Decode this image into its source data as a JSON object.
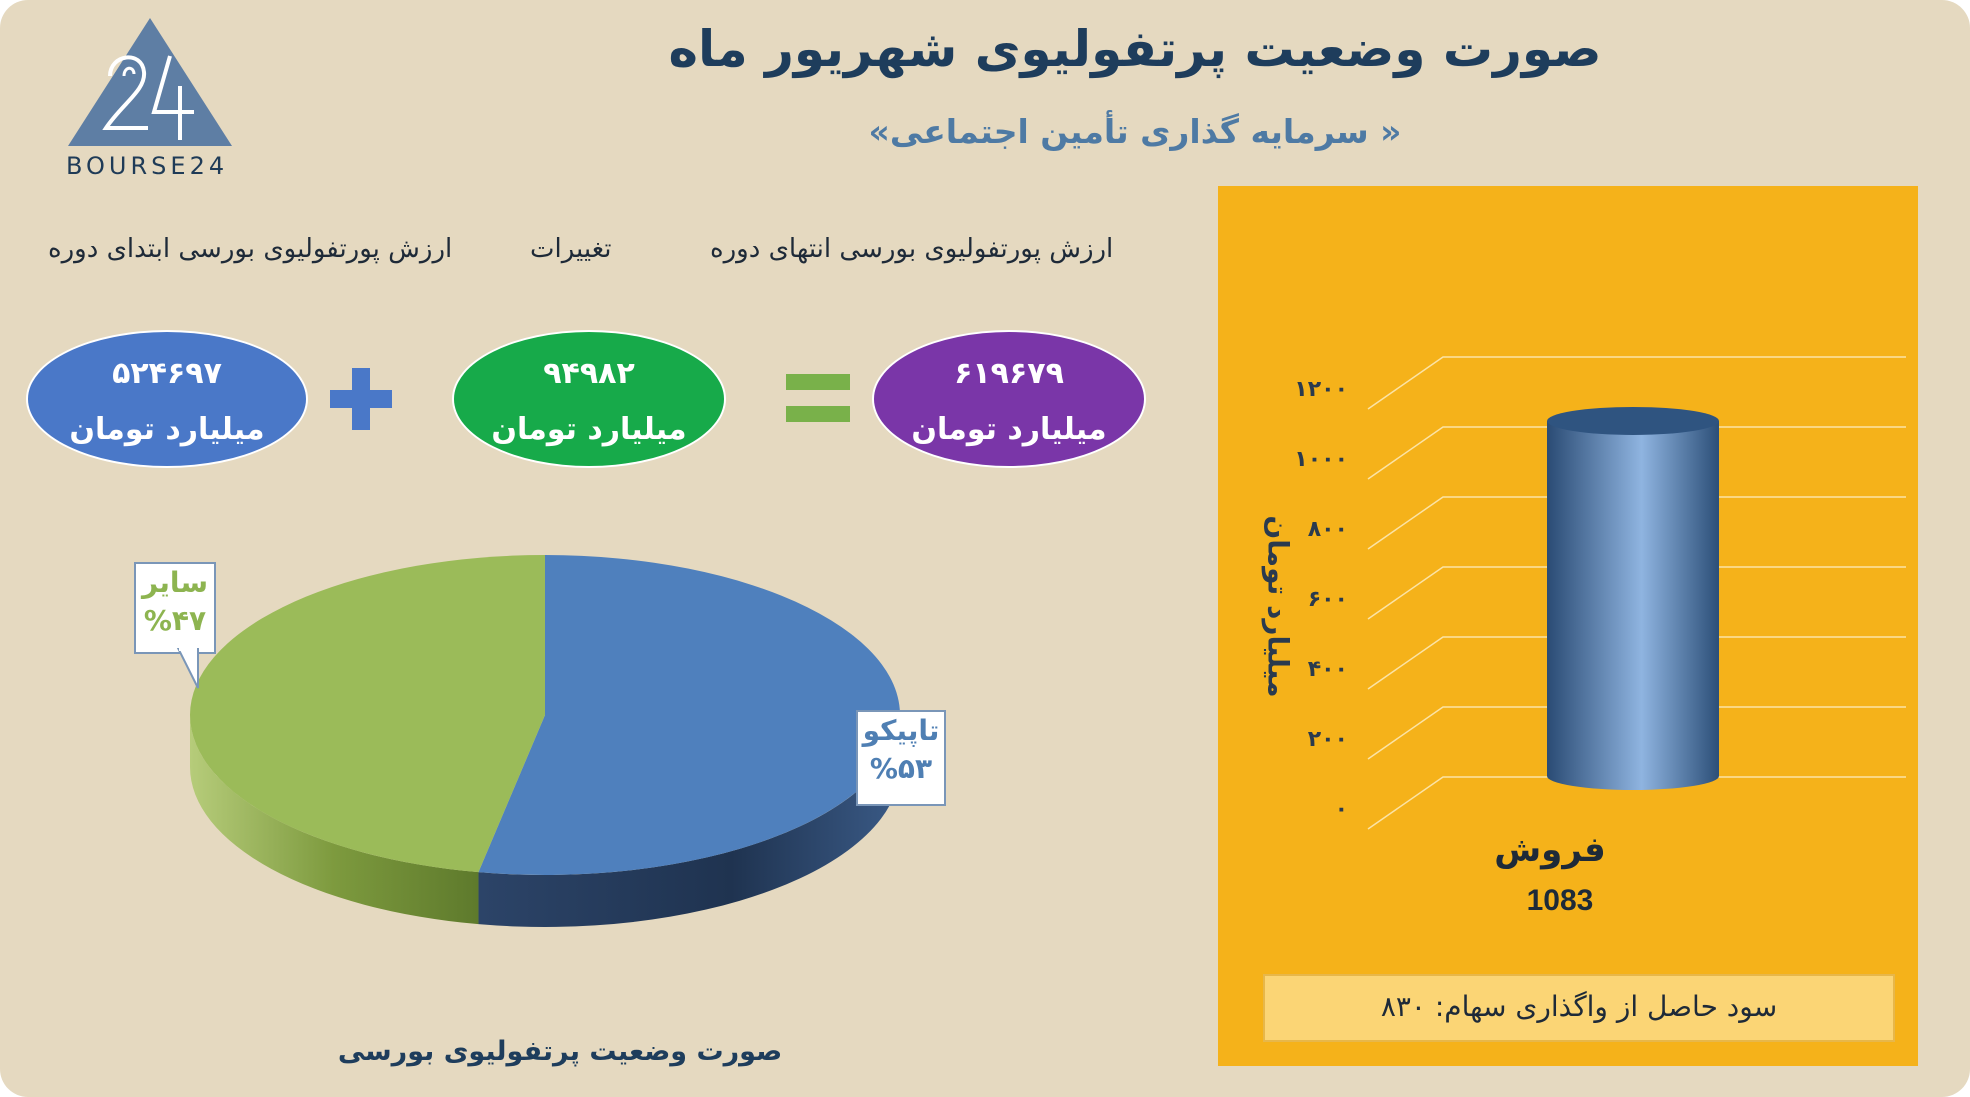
{
  "logo": {
    "text": "BOURSE24",
    "mark": "24"
  },
  "header": {
    "title": "صورت وضعیت پرتفولیوی شهریور ماه",
    "subtitle": "«سرمایه گذاری تأمین اجتماعی »"
  },
  "equation": {
    "start_label": "ارزش پورتفولیوی بورسی ابتدای دوره",
    "change_label": "تغییرات",
    "end_label": "ارزش پورتفولیوی بورسی انتهای دوره",
    "start_value": "۵۲۴۶۹۷",
    "change_value": "۹۴۹۸۲",
    "end_value": "۶۱۹۶۷۹",
    "unit": "میلیارد تومان",
    "colors": {
      "start": "#4a78c8",
      "change": "#17aa4a",
      "end": "#7a36a8",
      "operator": "#4a78c8",
      "equals": "#79b14a"
    }
  },
  "chart_data": [
    {
      "type": "pie",
      "title": "صورت وضعیت پرتفولیوی بورسی",
      "slices": [
        {
          "label": "تاپیکو",
          "value": 53,
          "display": "%۵۳",
          "color": "#4f80bd"
        },
        {
          "label": "سایر",
          "value": 47,
          "display": "%۴۷",
          "color": "#9bbb59"
        }
      ]
    },
    {
      "type": "bar",
      "categories": [
        "فروش"
      ],
      "values": [
        1083
      ],
      "value_label": "1083",
      "ylabel": "میلیارد تومان",
      "ylim": [
        0,
        1200
      ],
      "yticks": [
        0,
        200,
        400,
        600,
        800,
        1000,
        1200
      ],
      "ytick_labels": [
        "۰",
        "۲۰۰",
        "۴۰۰",
        "۶۰۰",
        "۸۰۰",
        "۱۰۰۰",
        "۱۲۰۰"
      ],
      "grid": true,
      "bar_color": "#4f7fb3",
      "background": "#f5b21a"
    }
  ],
  "profit_note": "سود حاصل از واگذاری سهام: ۸۳۰"
}
